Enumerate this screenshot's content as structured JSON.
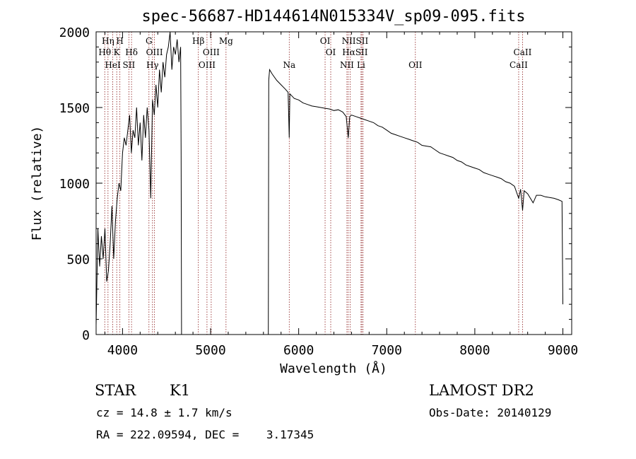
{
  "chart_data": {
    "type": "line",
    "title": "spec-56687-HD144614N015334V_sp09-095.fits",
    "xlabel": "Wavelength (Å)",
    "ylabel": "Flux (relative)",
    "xlim": [
      3700,
      9100
    ],
    "ylim": [
      0,
      2000
    ],
    "xticks": [
      4000,
      5000,
      6000,
      7000,
      8000,
      9000
    ],
    "yticks": [
      0,
      500,
      1000,
      1500,
      2000
    ],
    "grid": false,
    "line_color": "#000000",
    "marker_color": "#8b1a1a",
    "series": [
      {
        "x": [
          3700,
          3720,
          3740,
          3760,
          3780,
          3800,
          3820,
          3840,
          3860,
          3880,
          3900,
          3920,
          3940,
          3960,
          3980,
          4000,
          4020,
          4040,
          4060,
          4080,
          4100,
          4120,
          4140,
          4160,
          4180,
          4200,
          4220,
          4240,
          4260,
          4280,
          4300,
          4320,
          4340,
          4360,
          4380,
          4400,
          4420,
          4440,
          4460,
          4480,
          4500,
          4520,
          4540,
          4560,
          4580,
          4600,
          4620,
          4640,
          4660,
          4665,
          4670,
          5655,
          5660,
          5670,
          5700,
          5750,
          5800,
          5850,
          5880,
          5893,
          5900,
          5950,
          6000,
          6050,
          6100,
          6150,
          6200,
          6250,
          6300,
          6350,
          6400,
          6450,
          6500,
          6540,
          6563,
          6580,
          6600,
          6650,
          6700,
          6750,
          6800,
          6850,
          6900,
          6950,
          7000,
          7050,
          7100,
          7150,
          7200,
          7250,
          7300,
          7350,
          7400,
          7450,
          7500,
          7550,
          7600,
          7650,
          7700,
          7750,
          7800,
          7850,
          7900,
          7950,
          8000,
          8050,
          8100,
          8150,
          8200,
          8250,
          8300,
          8350,
          8400,
          8450,
          8498,
          8520,
          8542,
          8560,
          8600,
          8662,
          8700,
          8750,
          8800,
          8850,
          8900,
          8950,
          8990,
          9000
        ],
        "y": [
          60,
          700,
          450,
          650,
          500,
          700,
          350,
          420,
          600,
          850,
          500,
          750,
          900,
          1000,
          950,
          1200,
          1300,
          1250,
          1350,
          1450,
          1200,
          1350,
          1300,
          1500,
          1250,
          1400,
          1150,
          1450,
          1300,
          1500,
          1350,
          900,
          1550,
          1450,
          1650,
          1500,
          1750,
          1600,
          1800,
          1700,
          1850,
          1900,
          2000,
          1750,
          1900,
          1850,
          1950,
          1800,
          1900,
          1200,
          0,
          0,
          1680,
          1750,
          1720,
          1680,
          1650,
          1620,
          1600,
          1300,
          1590,
          1560,
          1550,
          1530,
          1520,
          1510,
          1505,
          1500,
          1495,
          1490,
          1480,
          1485,
          1470,
          1440,
          1300,
          1440,
          1450,
          1440,
          1430,
          1420,
          1410,
          1400,
          1380,
          1370,
          1350,
          1330,
          1320,
          1310,
          1300,
          1290,
          1280,
          1270,
          1250,
          1245,
          1240,
          1220,
          1200,
          1190,
          1180,
          1170,
          1150,
          1140,
          1120,
          1110,
          1100,
          1090,
          1070,
          1060,
          1050,
          1040,
          1030,
          1010,
          1000,
          980,
          900,
          960,
          820,
          950,
          930,
          870,
          920,
          920,
          910,
          905,
          900,
          890,
          880,
          200
        ]
      }
    ],
    "line_labels": [
      {
        "text": "Hη",
        "wl": 3835,
        "row": 0
      },
      {
        "text": "H",
        "wl": 3970,
        "row": 0
      },
      {
        "text": "G",
        "wl": 4300,
        "row": 0
      },
      {
        "text": "Hβ",
        "wl": 4861,
        "row": 0
      },
      {
        "text": "Mg",
        "wl": 5175,
        "row": 0
      },
      {
        "text": "OI",
        "wl": 6300,
        "row": 0
      },
      {
        "text": "NIISII",
        "wl": 6640,
        "row": 0
      },
      {
        "text": "Hθ",
        "wl": 3798,
        "row": 1
      },
      {
        "text": "K",
        "wl": 3934,
        "row": 1
      },
      {
        "text": "Hδ",
        "wl": 4102,
        "row": 1
      },
      {
        "text": "OIII",
        "wl": 4363,
        "row": 1
      },
      {
        "text": "OIII",
        "wl": 5007,
        "row": 1
      },
      {
        "text": "OI",
        "wl": 6364,
        "row": 1
      },
      {
        "text": "HαSII",
        "wl": 6640,
        "row": 1
      },
      {
        "text": "CaII",
        "wl": 8542,
        "row": 1
      },
      {
        "text": "HeI",
        "wl": 3889,
        "row": 2
      },
      {
        "text": "SII",
        "wl": 4072,
        "row": 2
      },
      {
        "text": "Hγ",
        "wl": 4340,
        "row": 2
      },
      {
        "text": "OIII",
        "wl": 4959,
        "row": 2
      },
      {
        "text": "Na",
        "wl": 5893,
        "row": 2
      },
      {
        "text": "NII",
        "wl": 6548,
        "row": 2
      },
      {
        "text": "Li",
        "wl": 6708,
        "row": 2
      },
      {
        "text": "OII",
        "wl": 7325,
        "row": 2
      },
      {
        "text": "CaII",
        "wl": 8498,
        "row": 2
      }
    ],
    "marker_lines": [
      3798,
      3835,
      3889,
      3934,
      3970,
      4072,
      4102,
      4300,
      4340,
      4363,
      4861,
      4959,
      5007,
      5175,
      5893,
      6300,
      6364,
      6548,
      6563,
      6584,
      6708,
      6717,
      6731,
      7325,
      8498,
      8542
    ]
  },
  "info": {
    "class": "STAR",
    "subclass": "K1",
    "survey": "LAMOST DR2",
    "cz": "cz = 14.8 ± 1.7 km/s",
    "obs_date": "Obs-Date: 20140129",
    "coords": "RA = 222.09594, DEC =    3.17345"
  }
}
